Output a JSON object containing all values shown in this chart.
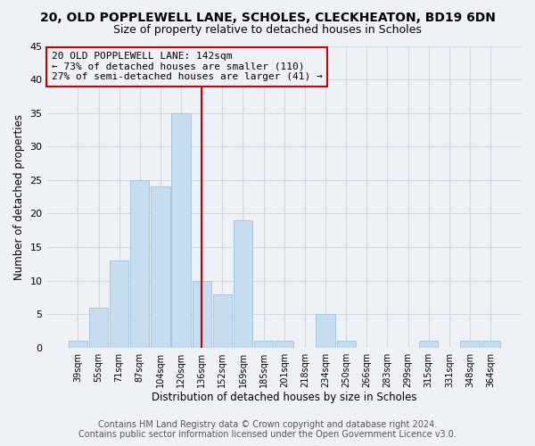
{
  "title": "20, OLD POPPLEWELL LANE, SCHOLES, CLECKHEATON, BD19 6DN",
  "subtitle": "Size of property relative to detached houses in Scholes",
  "xlabel": "Distribution of detached houses by size in Scholes",
  "ylabel": "Number of detached properties",
  "bar_labels": [
    "39sqm",
    "55sqm",
    "71sqm",
    "87sqm",
    "104sqm",
    "120sqm",
    "136sqm",
    "152sqm",
    "169sqm",
    "185sqm",
    "201sqm",
    "218sqm",
    "234sqm",
    "250sqm",
    "266sqm",
    "283sqm",
    "299sqm",
    "315sqm",
    "331sqm",
    "348sqm",
    "364sqm"
  ],
  "bar_values": [
    1,
    6,
    13,
    25,
    24,
    35,
    10,
    8,
    19,
    1,
    1,
    0,
    5,
    1,
    0,
    0,
    0,
    1,
    0,
    1,
    1
  ],
  "bar_color": "#c6ddef",
  "bar_edge_color": "#a0c0dc",
  "grid_color": "#d0d8e0",
  "vline_x_index": 6,
  "vline_color": "#cc0000",
  "annotation_line1": "20 OLD POPPLEWELL LANE: 142sqm",
  "annotation_line2": "← 73% of detached houses are smaller (110)",
  "annotation_line3": "27% of semi-detached houses are larger (41) →",
  "annotation_box_edge_color": "#cc0000",
  "ylim": [
    0,
    45
  ],
  "yticks": [
    0,
    5,
    10,
    15,
    20,
    25,
    30,
    35,
    40,
    45
  ],
  "footer_line1": "Contains HM Land Registry data © Crown copyright and database right 2024.",
  "footer_line2": "Contains public sector information licensed under the Open Government Licence v3.0.",
  "background_color": "#eef2f7",
  "title_fontsize": 10,
  "subtitle_fontsize": 9,
  "annotation_fontsize": 8,
  "footer_fontsize": 7
}
